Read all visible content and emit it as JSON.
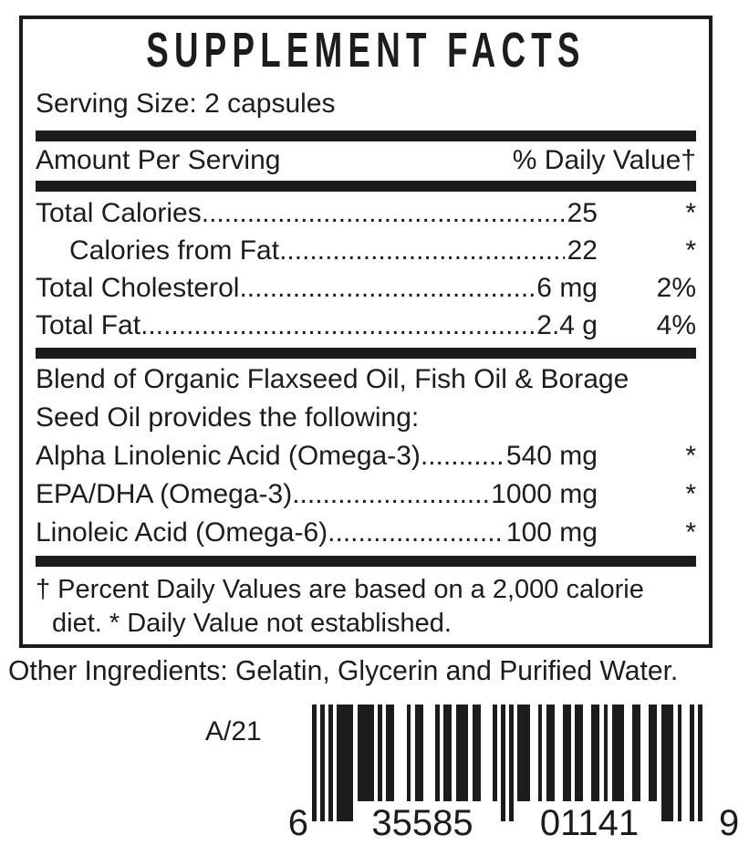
{
  "panel": {
    "title": "SUPPLEMENT FACTS",
    "serving_size": "Serving Size: 2 capsules",
    "header": {
      "left": "Amount Per Serving",
      "right": "% Daily Value†"
    },
    "rows": [
      {
        "label": "Total Calories",
        "amount": "25",
        "dv": "*"
      },
      {
        "label": "Calories from Fat",
        "amount": "22",
        "dv": "*"
      },
      {
        "label": "Total Cholesterol",
        "amount": "6 mg",
        "dv": "2%"
      },
      {
        "label": "Total Fat",
        "amount": "2.4 g",
        "dv": "4%"
      }
    ],
    "blend_heading_line1": "Blend of Organic Flaxseed Oil, Fish Oil & Borage",
    "blend_heading_line2": "Seed Oil provides the following:",
    "blend_rows": [
      {
        "label": "Alpha Linolenic Acid (Omega-3)",
        "amount": "540 mg",
        "dv": "*"
      },
      {
        "label": "EPA/DHA (Omega-3)",
        "amount": "1000 mg",
        "dv": "*"
      },
      {
        "label": "Linoleic Acid (Omega-6)",
        "amount": "100 mg",
        "dv": "*"
      }
    ],
    "footnote_line1": "† Percent Daily Values are based on a 2,000 calorie",
    "footnote_line2": "diet.  * Daily Value not established."
  },
  "other_ingredients": "Other Ingredients: Gelatin, Glycerin and Purified Water.",
  "barcode": {
    "lot_code": "A/21",
    "digits": "635585011419",
    "display_first": "6",
    "display_left_group": "35585",
    "display_right_group": "01141",
    "display_last": "9"
  },
  "colors": {
    "ink": "#1c1c1c",
    "background": "#ffffff"
  }
}
